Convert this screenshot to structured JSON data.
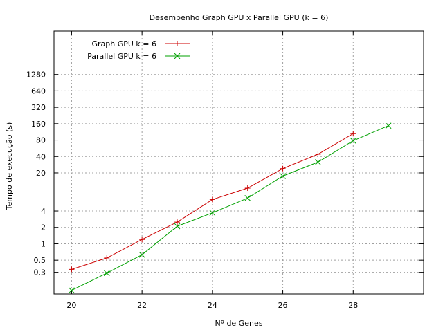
{
  "chart_data": {
    "type": "line",
    "title": "Desempenho Graph GPU x Parallel GPU (k = 6)",
    "xlabel": "Nº de Genes",
    "ylabel": "Tempo de execução (s)",
    "xlim": [
      19.5,
      30
    ],
    "ylim": [
      0.12,
      8000
    ],
    "y_scale": "log",
    "grid": true,
    "legend_position": "top-left",
    "x_ticks": [
      20,
      22,
      24,
      26,
      28
    ],
    "x_tick_labels": [
      "20",
      "22",
      "24",
      "26",
      "28"
    ],
    "y_ticks": [
      0.3,
      0.5,
      1,
      2,
      4,
      20,
      40,
      80,
      160,
      320,
      640,
      1280
    ],
    "y_tick_labels": [
      "0.3",
      "0.5",
      "1",
      "2",
      "4",
      "20",
      "40",
      "80",
      "160",
      "320",
      "640",
      "1280"
    ],
    "series": [
      {
        "name": "Graph GPU k = 6",
        "color": "#cc0000",
        "marker": "plus",
        "x": [
          20,
          21,
          22,
          23,
          24,
          25,
          26,
          27,
          28
        ],
        "values": [
          0.34,
          0.55,
          1.2,
          2.5,
          6.5,
          10.5,
          24,
          44,
          105
        ]
      },
      {
        "name": "Parallel GPU k = 6",
        "color": "#00a000",
        "marker": "cross",
        "x": [
          20,
          21,
          22,
          23,
          24,
          25,
          26,
          27,
          28,
          29
        ],
        "values": [
          0.14,
          0.29,
          0.63,
          2.1,
          3.7,
          6.9,
          17.5,
          31.5,
          78,
          147
        ]
      }
    ]
  }
}
